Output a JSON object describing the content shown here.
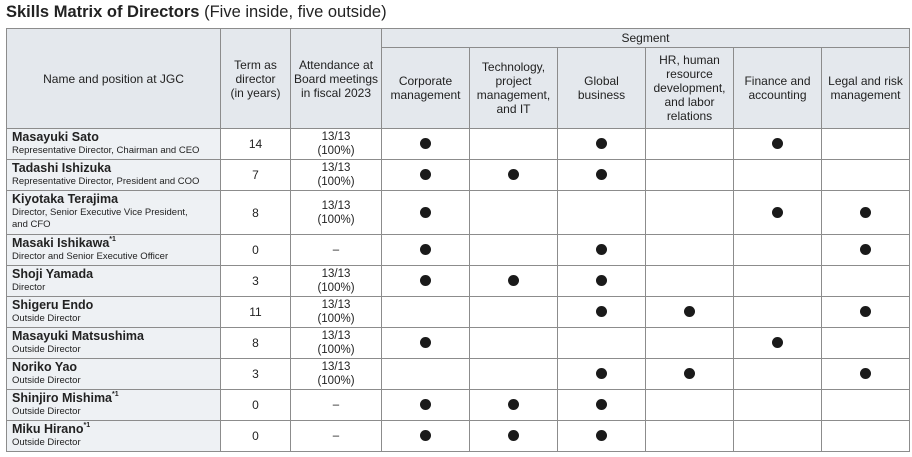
{
  "title": {
    "main": "Skills Matrix of Directors",
    "sub": "(Five inside, five outside)"
  },
  "headers": {
    "name": "Name and position at JGC",
    "term": [
      "Term as",
      "director",
      "(in years)"
    ],
    "attendance": [
      "Attendance at",
      "Board meetings",
      "in fiscal 2023"
    ],
    "segment": "Segment",
    "segments": [
      [
        "Corporate",
        "management"
      ],
      [
        "Technology,",
        "project",
        "management,",
        "and IT"
      ],
      [
        "Global",
        "business"
      ],
      [
        "HR, human",
        "resource",
        "development,",
        "and labor",
        "relations"
      ],
      [
        "Finance and",
        "accounting"
      ],
      [
        "Legal and risk",
        "management"
      ]
    ]
  },
  "directors": [
    {
      "name": "Masayuki Sato",
      "note": "",
      "position": [
        "Representative Director, Chairman and CEO"
      ],
      "term": "14",
      "attendance": [
        "13/13",
        "(100%)"
      ],
      "skills": [
        true,
        false,
        true,
        false,
        true,
        false
      ]
    },
    {
      "name": "Tadashi Ishizuka",
      "note": "",
      "position": [
        "Representative Director, President and COO"
      ],
      "term": "7",
      "attendance": [
        "13/13",
        "(100%)"
      ],
      "skills": [
        true,
        true,
        true,
        false,
        false,
        false
      ]
    },
    {
      "name": "Kiyotaka Terajima",
      "note": "",
      "position": [
        "Director, Senior Executive Vice President,",
        "and CFO"
      ],
      "term": "8",
      "attendance": [
        "13/13",
        "(100%)"
      ],
      "skills": [
        true,
        false,
        false,
        false,
        true,
        true
      ]
    },
    {
      "name": "Masaki Ishikawa",
      "note": "*1",
      "position": [
        "Director and Senior Executive Officer"
      ],
      "term": "0",
      "attendance": [
        "–"
      ],
      "skills": [
        true,
        false,
        true,
        false,
        false,
        true
      ]
    },
    {
      "name": "Shoji Yamada",
      "note": "",
      "position": [
        "Director"
      ],
      "term": "3",
      "attendance": [
        "13/13",
        "(100%)"
      ],
      "skills": [
        true,
        true,
        true,
        false,
        false,
        false
      ]
    },
    {
      "name": "Shigeru Endo",
      "note": "",
      "position": [
        "Outside Director"
      ],
      "term": "11",
      "attendance": [
        "13/13",
        "(100%)"
      ],
      "skills": [
        false,
        false,
        true,
        true,
        false,
        true
      ]
    },
    {
      "name": "Masayuki Matsushima",
      "note": "",
      "position": [
        "Outside Director"
      ],
      "term": "8",
      "attendance": [
        "13/13",
        "(100%)"
      ],
      "skills": [
        true,
        false,
        false,
        false,
        true,
        false
      ]
    },
    {
      "name": "Noriko Yao",
      "note": "",
      "position": [
        "Outside Director"
      ],
      "term": "3",
      "attendance": [
        "13/13",
        "(100%)"
      ],
      "skills": [
        false,
        false,
        true,
        true,
        false,
        true
      ]
    },
    {
      "name": "Shinjiro Mishima",
      "note": "*1",
      "position": [
        "Outside Director"
      ],
      "term": "0",
      "attendance": [
        "–"
      ],
      "skills": [
        true,
        true,
        true,
        false,
        false,
        false
      ]
    },
    {
      "name": "Miku Hirano",
      "note": "*1",
      "position": [
        "Outside Director"
      ],
      "term": "0",
      "attendance": [
        "–"
      ],
      "skills": [
        true,
        true,
        true,
        false,
        false,
        false
      ]
    }
  ]
}
